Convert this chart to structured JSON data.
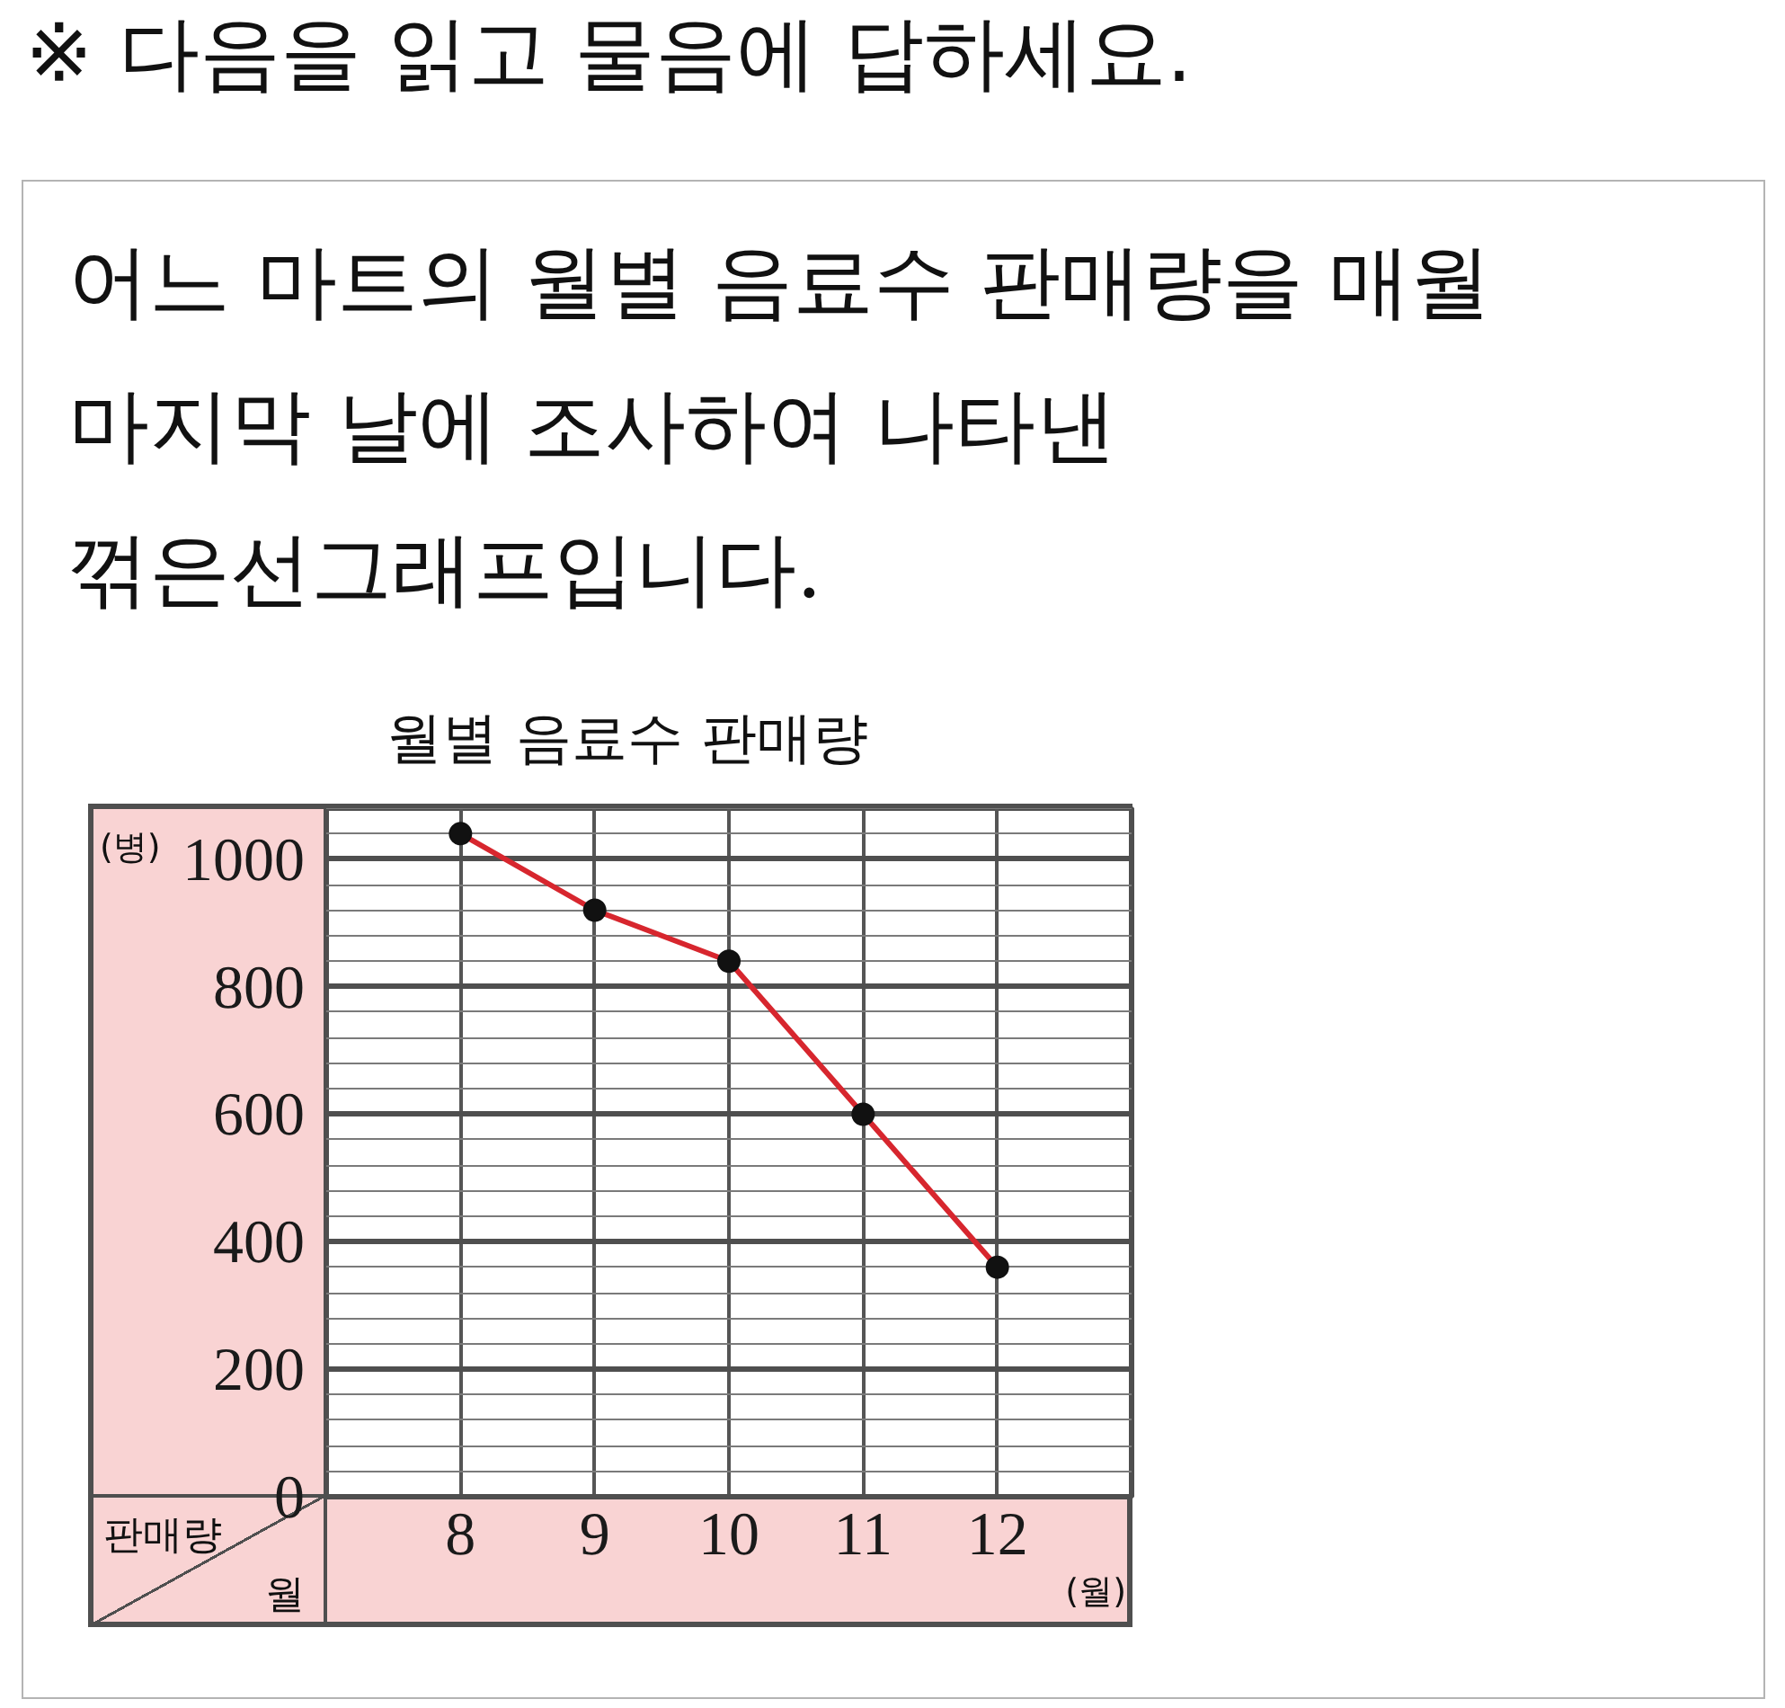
{
  "chart_data": {
    "type": "line",
    "title": "월별 음료수 판매량",
    "xlabel": "(월)",
    "ylabel": "(병)",
    "annotations": [
      "※ 다음을 읽고 물음에 답하세요.",
      "어느 마트의 월별 음료수 판매량을 매월\n마지막 날에 조사하여 나타낸\n꺾은선그래프입니다.",
      "판매량",
      "월"
    ],
    "x": [
      8,
      9,
      10,
      11,
      12
    ],
    "xlim": [
      7,
      13
    ],
    "xticks": [
      8,
      9,
      10,
      11,
      12
    ],
    "series": [
      {
        "color": "#d7262e",
        "values": [
          1040,
          920,
          840,
          600,
          360
        ]
      },
      {
        "type": "scatter",
        "color": "#111111",
        "marker": "circle",
        "values": [
          1040,
          920,
          840,
          600,
          360
        ]
      }
    ],
    "ylim": [
      0,
      1080
    ],
    "yticks": [
      0,
      {
        "value": 40,
        "label": null
      },
      {
        "value": 80,
        "label": null
      },
      {
        "value": 120,
        "label": null
      },
      {
        "value": 160,
        "label": null
      },
      200,
      {
        "value": 240,
        "label": null
      },
      {
        "value": 280,
        "label": null
      },
      {
        "value": 320,
        "label": null
      },
      {
        "value": 360,
        "label": null
      },
      400,
      {
        "value": 440,
        "label": null
      },
      {
        "value": 480,
        "label": null
      },
      {
        "value": 520,
        "label": null
      },
      {
        "value": 560,
        "label": null
      },
      600,
      {
        "value": 640,
        "label": null
      },
      {
        "value": 680,
        "label": null
      },
      {
        "value": 720,
        "label": null
      },
      {
        "value": 760,
        "label": null
      },
      800,
      {
        "value": 840,
        "label": null
      },
      {
        "value": 880,
        "label": null
      },
      {
        "value": 920,
        "label": null
      },
      {
        "value": 960,
        "label": null
      },
      1000,
      {
        "value": 1040,
        "label": null
      },
      {
        "value": 1080,
        "label": null
      }
    ],
    "grid": true,
    "line_style": "solid"
  }
}
